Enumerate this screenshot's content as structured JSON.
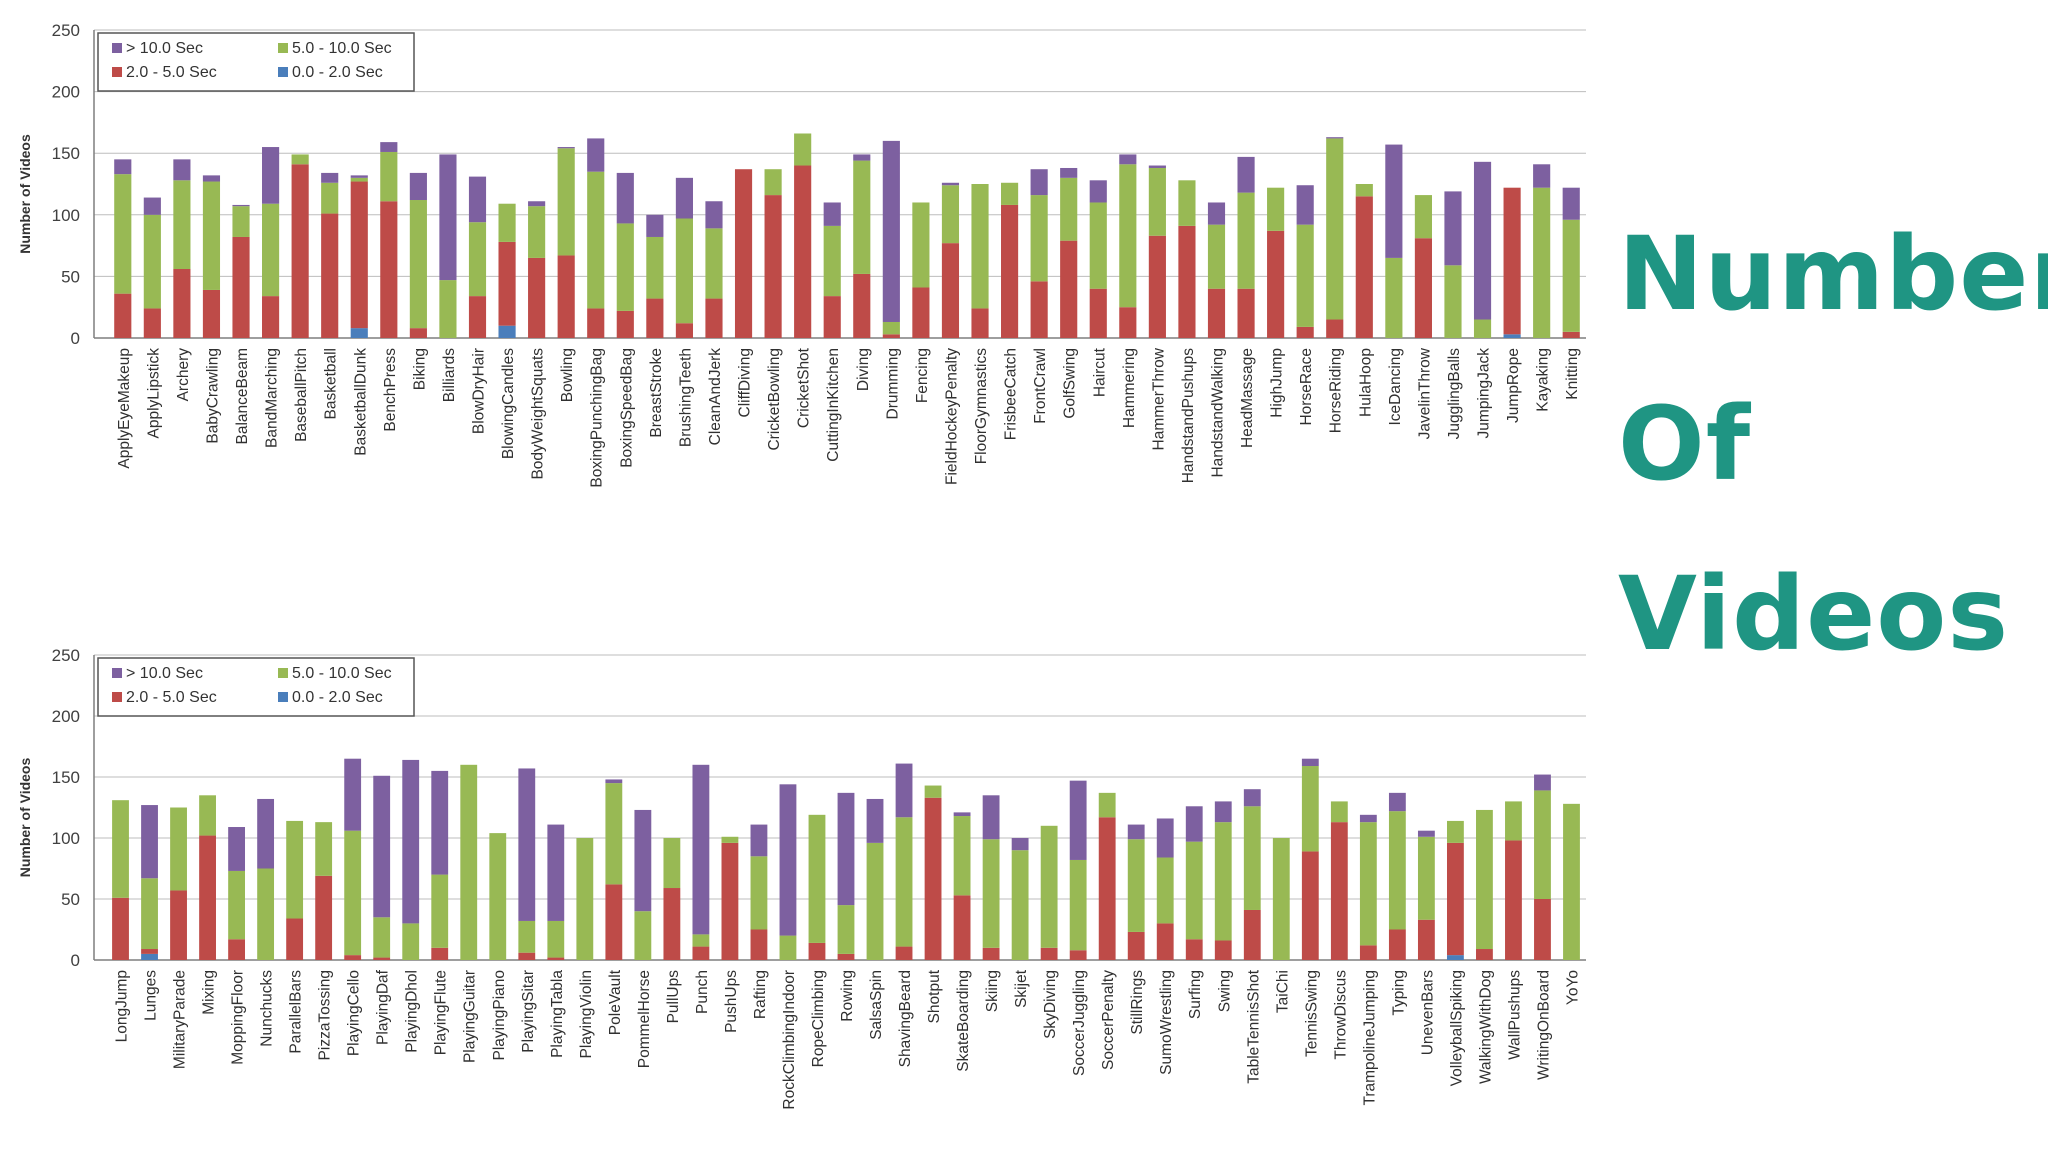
{
  "side_title": {
    "lines": [
      "Number",
      "Of",
      "Videos"
    ],
    "color": "#1f9583"
  },
  "chart_data": [
    {
      "type": "bar",
      "stacked": true,
      "ylabel": "Number of Videos",
      "xlabel": "",
      "ylim": [
        0,
        250
      ],
      "yticks": [
        0,
        50,
        100,
        150,
        200,
        250
      ],
      "grid": true,
      "legend_position": "top-left",
      "categories": [
        "ApplyEyeMakeup",
        "ApplyLipstick",
        "Archery",
        "BabyCrawling",
        "BalanceBeam",
        "BandMarching",
        "BaseballPitch",
        "Basketball",
        "BasketballDunk",
        "BenchPress",
        "Biking",
        "Billiards",
        "BlowDryHair",
        "BlowingCandles",
        "BodyWeightSquats",
        "Bowling",
        "BoxingPunchingBag",
        "BoxingSpeedBag",
        "BreastStroke",
        "BrushingTeeth",
        "CleanAndJerk",
        "CliffDiving",
        "CricketBowling",
        "CricketShot",
        "CuttingInKitchen",
        "Diving",
        "Drumming",
        "Fencing",
        "FieldHockeyPenalty",
        "FloorGymnastics",
        "FrisbeeCatch",
        "FrontCrawl",
        "GolfSwing",
        "Haircut",
        "Hammering",
        "HammerThrow",
        "HandstandPushups",
        "HandstandWalking",
        "HeadMassage",
        "HighJump",
        "HorseRace",
        "HorseRiding",
        "HulaHoop",
        "IceDancing",
        "JavelinThrow",
        "JugglingBalls",
        "JumpingJack",
        "JumpRope",
        "Kayaking",
        "Knitting"
      ],
      "series": [
        {
          "name": "0.0 - 2.0 Sec",
          "color": "#4a7ebb",
          "values": [
            0,
            0,
            0,
            0,
            0,
            0,
            0,
            0,
            8,
            0,
            0,
            0,
            0,
            10,
            0,
            0,
            0,
            0,
            0,
            0,
            0,
            0,
            0,
            0,
            0,
            0,
            0,
            0,
            0,
            0,
            0,
            0,
            0,
            0,
            0,
            0,
            0,
            0,
            0,
            0,
            0,
            0,
            0,
            0,
            0,
            0,
            0,
            3,
            0,
            0
          ]
        },
        {
          "name": "2.0 - 5.0 Sec",
          "color": "#be4b48",
          "values": [
            36,
            24,
            56,
            39,
            82,
            34,
            141,
            101,
            119,
            111,
            8,
            0,
            34,
            68,
            65,
            67,
            24,
            22,
            32,
            12,
            32,
            137,
            116,
            140,
            34,
            52,
            3,
            41,
            77,
            24,
            108,
            46,
            79,
            40,
            25,
            83,
            91,
            40,
            40,
            87,
            9,
            15,
            115,
            0,
            81,
            0,
            0,
            119,
            0,
            5
          ]
        },
        {
          "name": "5.0 - 10.0 Sec",
          "color": "#98b954",
          "values": [
            97,
            76,
            72,
            88,
            25,
            75,
            8,
            25,
            3,
            40,
            104,
            47,
            60,
            31,
            42,
            87,
            111,
            71,
            50,
            85,
            57,
            0,
            21,
            26,
            57,
            92,
            10,
            69,
            47,
            101,
            18,
            70,
            51,
            70,
            116,
            55,
            37,
            52,
            78,
            35,
            83,
            147,
            10,
            65,
            35,
            59,
            15,
            0,
            122,
            91
          ]
        },
        {
          "name": "> 10.0 Sec",
          "color": "#7d60a0",
          "values": [
            12,
            14,
            17,
            5,
            1,
            46,
            0,
            8,
            2,
            8,
            22,
            102,
            37,
            0,
            4,
            1,
            27,
            41,
            18,
            33,
            22,
            0,
            0,
            0,
            19,
            5,
            147,
            0,
            2,
            0,
            0,
            21,
            8,
            18,
            8,
            2,
            0,
            18,
            29,
            0,
            32,
            1,
            0,
            92,
            0,
            60,
            128,
            0,
            19,
            26
          ]
        }
      ]
    },
    {
      "type": "bar",
      "stacked": true,
      "ylabel": "Number of Videos",
      "xlabel": "",
      "ylim": [
        0,
        250
      ],
      "yticks": [
        0,
        50,
        100,
        150,
        200,
        250
      ],
      "grid": true,
      "legend_position": "top-left",
      "categories": [
        "LongJump",
        "Lunges",
        "MilitaryParade",
        "Mixing",
        "MoppingFloor",
        "Nunchucks",
        "ParallelBars",
        "PizzaTossing",
        "PlayingCello",
        "PlayingDaf",
        "PlayingDhol",
        "PlayingFlute",
        "PlayingGuitar",
        "PlayingPiano",
        "PlayingSitar",
        "PlayingTabla",
        "PlayingViolin",
        "PoleVault",
        "PommelHorse",
        "PullUps",
        "Punch",
        "PushUps",
        "Rafting",
        "RockClimbingIndoor",
        "RopeClimbing",
        "Rowing",
        "SalsaSpin",
        "ShavingBeard",
        "Shotput",
        "SkateBoarding",
        "Skiing",
        "Skijet",
        "SkyDiving",
        "SoccerJuggling",
        "SoccerPenalty",
        "StillRings",
        "SumoWrestling",
        "Surfing",
        "Swing",
        "TableTennisShot",
        "TaiChi",
        "TennisSwing",
        "ThrowDiscus",
        "TrampolineJumping",
        "Typing",
        "UnevenBars",
        "VolleyballSpiking",
        "WalkingWithDog",
        "WallPushups",
        "WritingOnBoard",
        "YoYo"
      ],
      "series": [
        {
          "name": "0.0 - 2.0 Sec",
          "color": "#4a7ebb",
          "values": [
            0,
            5,
            0,
            0,
            0,
            0,
            0,
            0,
            0,
            0,
            0,
            0,
            0,
            0,
            0,
            0,
            0,
            0,
            0,
            0,
            0,
            0,
            0,
            0,
            0,
            0,
            0,
            0,
            0,
            0,
            0,
            0,
            0,
            0,
            0,
            0,
            0,
            0,
            0,
            0,
            0,
            0,
            0,
            0,
            0,
            0,
            4,
            0,
            0,
            0,
            0
          ]
        },
        {
          "name": "2.0 - 5.0 Sec",
          "color": "#be4b48",
          "values": [
            51,
            4,
            57,
            102,
            17,
            0,
            34,
            69,
            4,
            2,
            0,
            10,
            0,
            0,
            6,
            2,
            0,
            62,
            0,
            59,
            11,
            96,
            25,
            0,
            14,
            5,
            0,
            11,
            133,
            53,
            10,
            0,
            10,
            8,
            117,
            23,
            30,
            17,
            16,
            41,
            0,
            89,
            113,
            12,
            25,
            33,
            92,
            9,
            98,
            50,
            0
          ]
        },
        {
          "name": "5.0 - 10.0 Sec",
          "color": "#98b954",
          "values": [
            80,
            58,
            68,
            33,
            56,
            75,
            80,
            44,
            102,
            33,
            30,
            60,
            160,
            104,
            26,
            30,
            100,
            83,
            40,
            41,
            10,
            5,
            60,
            20,
            105,
            40,
            96,
            106,
            10,
            65,
            89,
            90,
            100,
            74,
            20,
            76,
            54,
            80,
            97,
            85,
            100,
            70,
            17,
            101,
            97,
            68,
            18,
            114,
            32,
            89,
            128
          ]
        },
        {
          "name": "> 10.0 Sec",
          "color": "#7d60a0",
          "values": [
            0,
            60,
            0,
            0,
            36,
            57,
            0,
            0,
            59,
            116,
            134,
            85,
            0,
            0,
            125,
            79,
            0,
            3,
            83,
            0,
            139,
            0,
            26,
            124,
            0,
            92,
            36,
            44,
            0,
            3,
            36,
            10,
            0,
            65,
            0,
            12,
            32,
            29,
            17,
            14,
            0,
            6,
            0,
            6,
            15,
            5,
            0,
            0,
            0,
            13,
            0
          ]
        }
      ]
    }
  ]
}
